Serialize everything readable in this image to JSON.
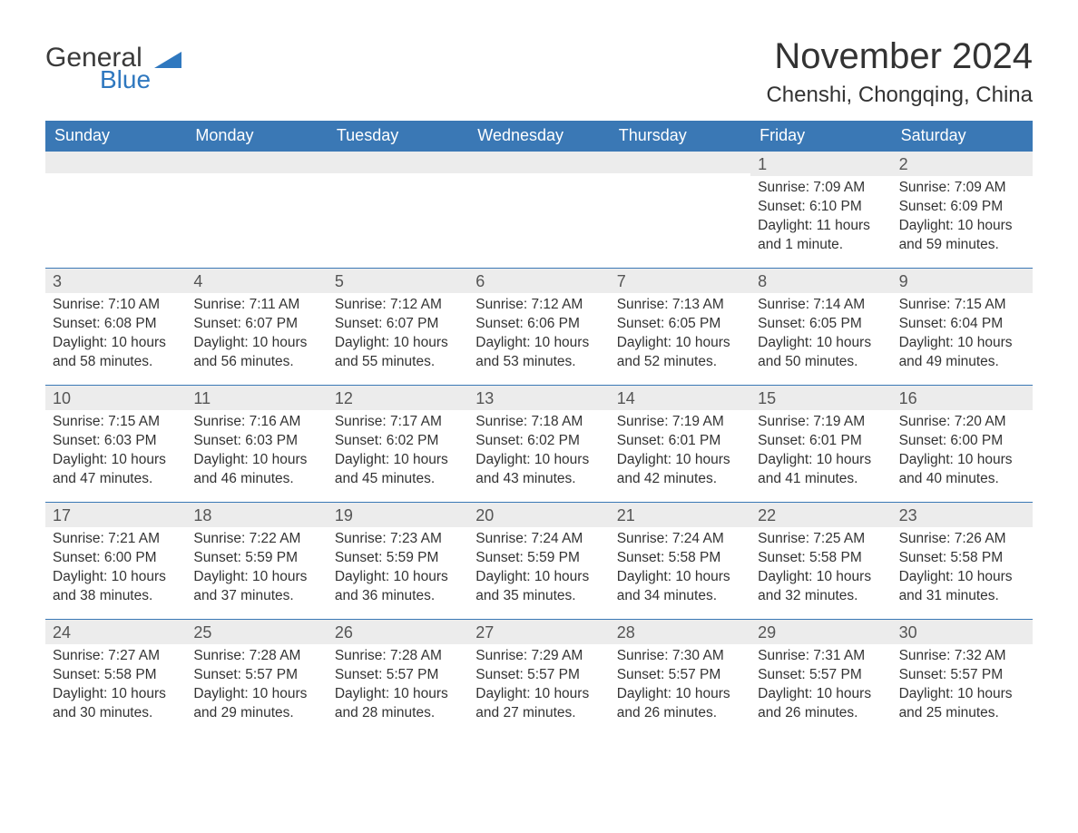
{
  "logo": {
    "word1": "General",
    "word2": "Blue",
    "word1_color": "#3a3a3a",
    "word2_color": "#2f78bf",
    "icon_color": "#2f78bf"
  },
  "header": {
    "month_title": "November 2024",
    "location": "Chenshi, Chongqing, China",
    "title_color": "#333333"
  },
  "colors": {
    "header_bg": "#3a78b5",
    "header_text": "#ffffff",
    "daynum_bg": "#ececec",
    "row_border": "#3a78b5",
    "body_text": "#333333",
    "page_bg": "#ffffff"
  },
  "fonts": {
    "title_size_pt": 30,
    "location_size_pt": 18,
    "weekday_size_pt": 14,
    "body_size_pt": 12
  },
  "weekdays": [
    "Sunday",
    "Monday",
    "Tuesday",
    "Wednesday",
    "Thursday",
    "Friday",
    "Saturday"
  ],
  "labels": {
    "sunrise": "Sunrise:",
    "sunset": "Sunset:",
    "daylight": "Daylight:"
  },
  "weeks": [
    [
      null,
      null,
      null,
      null,
      null,
      {
        "n": "1",
        "sunrise": "7:09 AM",
        "sunset": "6:10 PM",
        "daylight": "11 hours and 1 minute."
      },
      {
        "n": "2",
        "sunrise": "7:09 AM",
        "sunset": "6:09 PM",
        "daylight": "10 hours and 59 minutes."
      }
    ],
    [
      {
        "n": "3",
        "sunrise": "7:10 AM",
        "sunset": "6:08 PM",
        "daylight": "10 hours and 58 minutes."
      },
      {
        "n": "4",
        "sunrise": "7:11 AM",
        "sunset": "6:07 PM",
        "daylight": "10 hours and 56 minutes."
      },
      {
        "n": "5",
        "sunrise": "7:12 AM",
        "sunset": "6:07 PM",
        "daylight": "10 hours and 55 minutes."
      },
      {
        "n": "6",
        "sunrise": "7:12 AM",
        "sunset": "6:06 PM",
        "daylight": "10 hours and 53 minutes."
      },
      {
        "n": "7",
        "sunrise": "7:13 AM",
        "sunset": "6:05 PM",
        "daylight": "10 hours and 52 minutes."
      },
      {
        "n": "8",
        "sunrise": "7:14 AM",
        "sunset": "6:05 PM",
        "daylight": "10 hours and 50 minutes."
      },
      {
        "n": "9",
        "sunrise": "7:15 AM",
        "sunset": "6:04 PM",
        "daylight": "10 hours and 49 minutes."
      }
    ],
    [
      {
        "n": "10",
        "sunrise": "7:15 AM",
        "sunset": "6:03 PM",
        "daylight": "10 hours and 47 minutes."
      },
      {
        "n": "11",
        "sunrise": "7:16 AM",
        "sunset": "6:03 PM",
        "daylight": "10 hours and 46 minutes."
      },
      {
        "n": "12",
        "sunrise": "7:17 AM",
        "sunset": "6:02 PM",
        "daylight": "10 hours and 45 minutes."
      },
      {
        "n": "13",
        "sunrise": "7:18 AM",
        "sunset": "6:02 PM",
        "daylight": "10 hours and 43 minutes."
      },
      {
        "n": "14",
        "sunrise": "7:19 AM",
        "sunset": "6:01 PM",
        "daylight": "10 hours and 42 minutes."
      },
      {
        "n": "15",
        "sunrise": "7:19 AM",
        "sunset": "6:01 PM",
        "daylight": "10 hours and 41 minutes."
      },
      {
        "n": "16",
        "sunrise": "7:20 AM",
        "sunset": "6:00 PM",
        "daylight": "10 hours and 40 minutes."
      }
    ],
    [
      {
        "n": "17",
        "sunrise": "7:21 AM",
        "sunset": "6:00 PM",
        "daylight": "10 hours and 38 minutes."
      },
      {
        "n": "18",
        "sunrise": "7:22 AM",
        "sunset": "5:59 PM",
        "daylight": "10 hours and 37 minutes."
      },
      {
        "n": "19",
        "sunrise": "7:23 AM",
        "sunset": "5:59 PM",
        "daylight": "10 hours and 36 minutes."
      },
      {
        "n": "20",
        "sunrise": "7:24 AM",
        "sunset": "5:59 PM",
        "daylight": "10 hours and 35 minutes."
      },
      {
        "n": "21",
        "sunrise": "7:24 AM",
        "sunset": "5:58 PM",
        "daylight": "10 hours and 34 minutes."
      },
      {
        "n": "22",
        "sunrise": "7:25 AM",
        "sunset": "5:58 PM",
        "daylight": "10 hours and 32 minutes."
      },
      {
        "n": "23",
        "sunrise": "7:26 AM",
        "sunset": "5:58 PM",
        "daylight": "10 hours and 31 minutes."
      }
    ],
    [
      {
        "n": "24",
        "sunrise": "7:27 AM",
        "sunset": "5:58 PM",
        "daylight": "10 hours and 30 minutes."
      },
      {
        "n": "25",
        "sunrise": "7:28 AM",
        "sunset": "5:57 PM",
        "daylight": "10 hours and 29 minutes."
      },
      {
        "n": "26",
        "sunrise": "7:28 AM",
        "sunset": "5:57 PM",
        "daylight": "10 hours and 28 minutes."
      },
      {
        "n": "27",
        "sunrise": "7:29 AM",
        "sunset": "5:57 PM",
        "daylight": "10 hours and 27 minutes."
      },
      {
        "n": "28",
        "sunrise": "7:30 AM",
        "sunset": "5:57 PM",
        "daylight": "10 hours and 26 minutes."
      },
      {
        "n": "29",
        "sunrise": "7:31 AM",
        "sunset": "5:57 PM",
        "daylight": "10 hours and 26 minutes."
      },
      {
        "n": "30",
        "sunrise": "7:32 AM",
        "sunset": "5:57 PM",
        "daylight": "10 hours and 25 minutes."
      }
    ]
  ]
}
